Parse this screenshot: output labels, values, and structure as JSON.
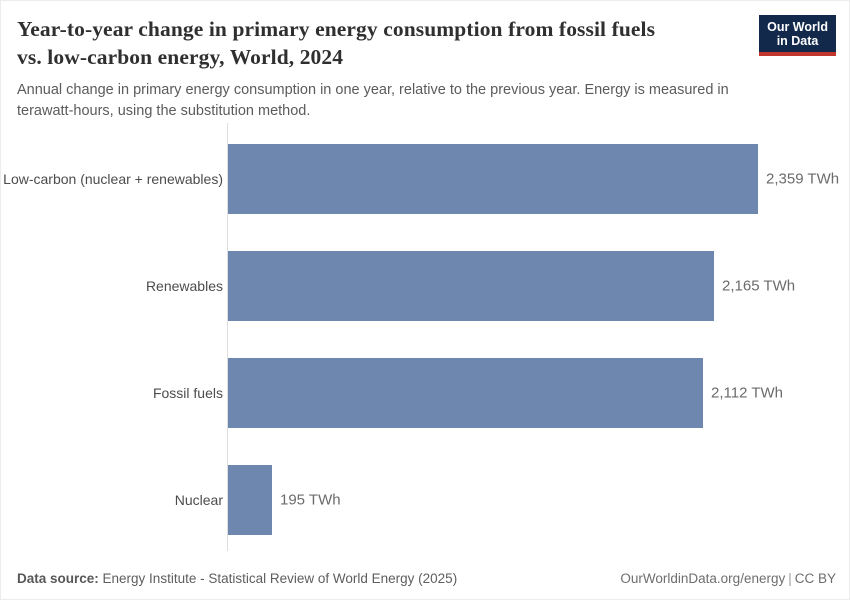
{
  "header": {
    "title": "Year-to-year change in primary energy consumption from fossil fuels vs. low-carbon energy, World, 2024",
    "title_lines": [
      "Year-to-year change in primary energy consumption from fossil fuels",
      "vs. low-carbon energy, World, 2024"
    ],
    "subtitle_lines": [
      "Annual change in primary energy consumption in one year, relative to the previous year. Energy is measured in",
      "terawatt-hours, using the substitution method."
    ],
    "logo": {
      "line1": "Our World",
      "line2": "in Data"
    }
  },
  "chart_data": {
    "type": "bar",
    "orientation": "horizontal",
    "title": "Year-to-year change in primary energy consumption from fossil fuels vs. low-carbon energy, World, 2024",
    "categories": [
      "Low-carbon (nuclear + renewables)",
      "Renewables",
      "Fossil fuels",
      "Nuclear"
    ],
    "values": [
      2359,
      2165,
      2112,
      195
    ],
    "value_labels": [
      "2,359 TWh",
      "2,165 TWh",
      "2,112 TWh",
      "195 TWh"
    ],
    "unit": "TWh",
    "xlim": [
      0,
      2359
    ],
    "grid": false,
    "legend": "none",
    "bar_color": "#6d87ae"
  },
  "footer": {
    "source_label": "Data source:",
    "source_text": " Energy Institute - Statistical Review of World Energy (2025)",
    "site": "OurWorldinData.org/energy",
    "separator": "|",
    "license": "CC BY"
  },
  "colors": {
    "bar": "#6d87ae",
    "logo_bg": "#12294b",
    "logo_stripe": "#c0362c",
    "axis": "#dedede",
    "title_text": "#2f2f2f",
    "body_text": "#5b5b5b"
  }
}
